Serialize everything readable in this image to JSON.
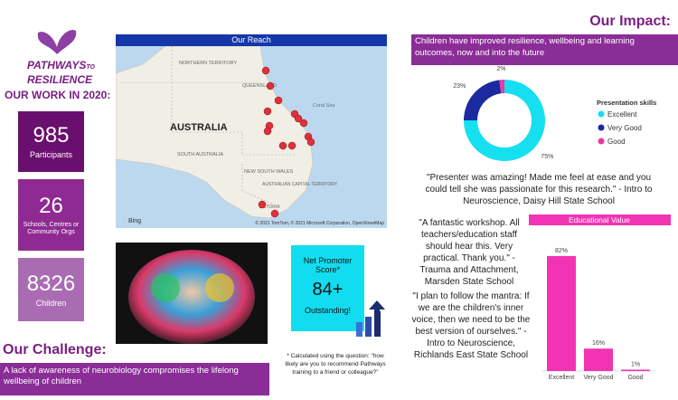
{
  "logo": {
    "line1": "PATHWAYS",
    "line2": "TO",
    "line3": "RESILIENCE"
  },
  "work": {
    "title": "OUR WORK IN 2020:",
    "kpis": [
      {
        "value": 985,
        "label": "Participants"
      },
      {
        "value": 26,
        "label": "Schools, Centres or Community Orgs"
      },
      {
        "value": 8326,
        "label": "Children"
      }
    ]
  },
  "challenge": {
    "title": "Our Challenge:",
    "text": "A lack of awareness of neurobiology compromises the lifelong wellbeing of children"
  },
  "reach": {
    "title": "Our Reach",
    "labels": [
      "NORTHERN TERRITORY",
      "QUEENSLAND",
      "AUSTRALIA",
      "SOUTH AUSTRALIA",
      "NEW SOUTH WALES",
      "AUSTRALIAN CAPITAL TERRITORY",
      "VICTORIA",
      "Coral Sea"
    ],
    "credit": "Bing",
    "copyright": "© 2021 TomTom, © 2021 Microsoft Corporation, OpenStreetMap"
  },
  "nps": {
    "title": "Net Promoter Score*",
    "score": "84+",
    "rating": "Outstanding!",
    "footnote": "* Calculated using the question: \"how likely are you to recommend Pathways training to a friend or colleague?\""
  },
  "impact": {
    "title": "Our Impact:",
    "text": "Children have improved resilience, wellbeing and learning outcomes, now and into the future"
  },
  "quotes": [
    "\"Presenter was amazing! Made me feel at ease and you could tell she was passionate for this research.\" - Intro to Neuroscience, Daisy Hill State School",
    "\"A fantastic workshop. All teachers/education staff should hear this. Very practical. Thank you.\" - Trauma and Attachment, Marsden State School",
    "\"I plan to follow the mantra: If we are the children's inner voice, then we need to be the best version of ourselves.\" - Intro to Neuroscience, Richlands East State School"
  ],
  "chart_data": [
    {
      "type": "donut",
      "legend_title": "Presentation skills",
      "categories": [
        "Excellent",
        "Very Good",
        "Good"
      ],
      "values": [
        75,
        23,
        2
      ],
      "value_labels": [
        "75%",
        "23%",
        "2%"
      ],
      "colors": [
        "#16dff0",
        "#1b2a9e",
        "#ea3aa2"
      ]
    },
    {
      "type": "bar",
      "title": "Educational Value",
      "categories": [
        "Excellent",
        "Very Good",
        "Good"
      ],
      "values": [
        82,
        16,
        1
      ],
      "value_labels": [
        "82%",
        "16%",
        "1%"
      ],
      "color": "#f234b4"
    }
  ]
}
